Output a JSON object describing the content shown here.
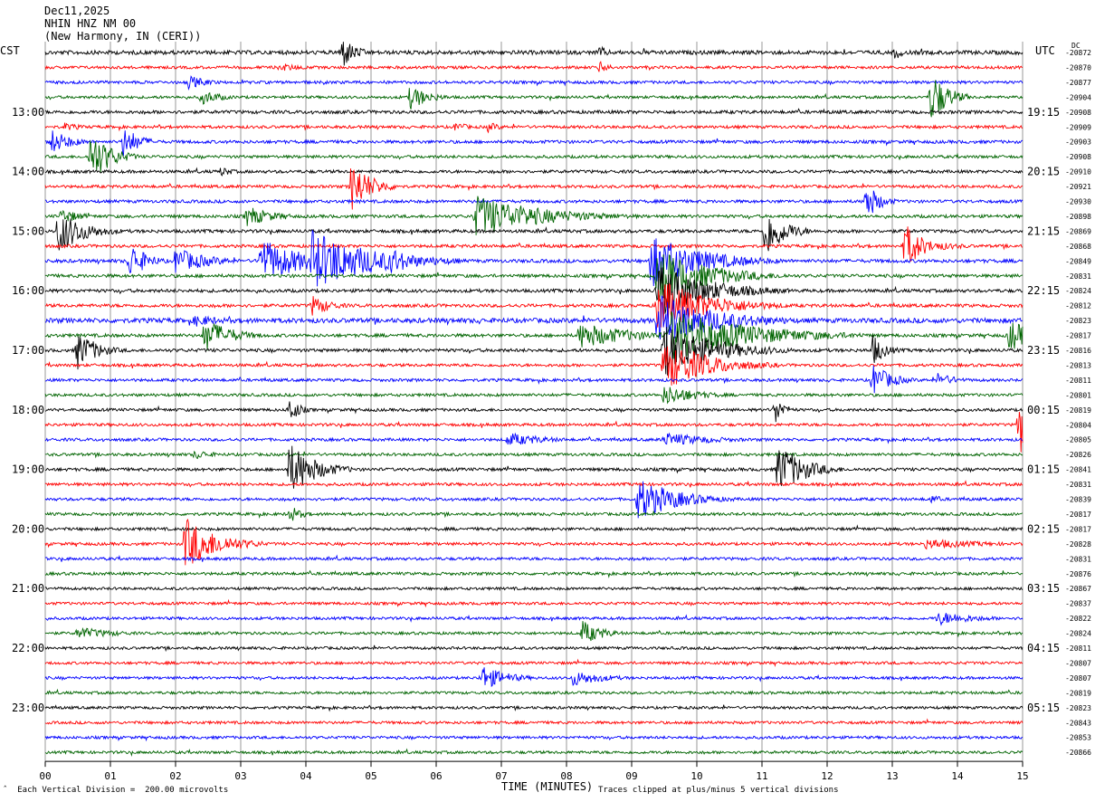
{
  "header": {
    "date": "Dec11,2025",
    "station": "NHIN HNZ NM 00",
    "location": "(New Harmony, IN (CERI))"
  },
  "left_tz": "CST",
  "right_tz": "UTC",
  "right_col_label": "DC",
  "footer": {
    "scale_note": "Each Vertical Division =  200.00 microvolts",
    "clip_note": "Traces clipped at plus/minus 5 vertical divisions"
  },
  "colors": {
    "cycle": [
      "#000000",
      "#ff0000",
      "#0000ff",
      "#006400"
    ],
    "grid": "#999999"
  },
  "chart_data": {
    "type": "line",
    "xlabel": "TIME (MINUTES)",
    "x_ticks": [
      "00",
      "01",
      "02",
      "03",
      "04",
      "05",
      "06",
      "07",
      "08",
      "09",
      "10",
      "11",
      "12",
      "13",
      "14",
      "15"
    ],
    "xlim": [
      0,
      15
    ],
    "left_time_labels": [
      {
        "trace": 4,
        "label": "13:00"
      },
      {
        "trace": 8,
        "label": "14:00"
      },
      {
        "trace": 12,
        "label": "15:00"
      },
      {
        "trace": 16,
        "label": "16:00"
      },
      {
        "trace": 20,
        "label": "17:00"
      },
      {
        "trace": 24,
        "label": "18:00"
      },
      {
        "trace": 28,
        "label": "19:00"
      },
      {
        "trace": 32,
        "label": "20:00"
      },
      {
        "trace": 36,
        "label": "21:00"
      },
      {
        "trace": 40,
        "label": "22:00"
      },
      {
        "trace": 44,
        "label": "23:00"
      }
    ],
    "right_time_labels": [
      {
        "trace": 4,
        "label": "19:15"
      },
      {
        "trace": 8,
        "label": "20:15"
      },
      {
        "trace": 12,
        "label": "21:15"
      },
      {
        "trace": 16,
        "label": "22:15"
      },
      {
        "trace": 20,
        "label": "23:15"
      },
      {
        "trace": 24,
        "label": "00:15"
      },
      {
        "trace": 28,
        "label": "01:15"
      },
      {
        "trace": 32,
        "label": "02:15"
      },
      {
        "trace": 36,
        "label": "03:15"
      },
      {
        "trace": 40,
        "label": "04:15"
      },
      {
        "trace": 44,
        "label": "05:15"
      }
    ],
    "dc_offsets": [
      "-20872",
      "-20870",
      "-20877",
      "-20904",
      "-20908",
      "-20909",
      "-20903",
      "-20908",
      "-20910",
      "-20921",
      "-20930",
      "-20898",
      "-20869",
      "-20868",
      "-20849",
      "-20831",
      "-20824",
      "-20812",
      "-20823",
      "-20817",
      "-20816",
      "-20813",
      "-20811",
      "-20801",
      "-20819",
      "-20804",
      "-20805",
      "-20826",
      "-20841",
      "-20831",
      "-20839",
      "-20817",
      "-20817",
      "-20828",
      "-20831",
      "-20876",
      "-20867",
      "-20837",
      "-20822",
      "-20824",
      "-20811",
      "-20807",
      "-20807",
      "-20819",
      "-20823",
      "-20843",
      "-20853",
      "-20866"
    ],
    "noise_levels": [
      2.2,
      1.6,
      1.6,
      1.5,
      1.8,
      1.6,
      1.7,
      1.6,
      1.7,
      1.6,
      1.7,
      1.7,
      1.8,
      1.7,
      1.9,
      1.8,
      1.8,
      1.8,
      2.6,
      1.8,
      1.8,
      1.6,
      1.6,
      1.6,
      1.6,
      1.6,
      1.6,
      1.6,
      1.7,
      1.6,
      1.6,
      1.6,
      1.6,
      1.6,
      1.6,
      1.6,
      1.5,
      1.5,
      1.5,
      1.5,
      1.5,
      1.5,
      1.5,
      1.5,
      1.5,
      1.5,
      1.5,
      1.5
    ],
    "events": [
      {
        "trace": 0,
        "minute": 4.55,
        "amplitude": 20,
        "duration": 0.2
      },
      {
        "trace": 0,
        "minute": 8.5,
        "amplitude": 8,
        "duration": 0.15
      },
      {
        "trace": 0,
        "minute": 13.05,
        "amplitude": 10,
        "duration": 0.1
      },
      {
        "trace": 1,
        "minute": 3.6,
        "amplitude": 5,
        "duration": 0.4
      },
      {
        "trace": 1,
        "minute": 8.5,
        "amplitude": 7,
        "duration": 0.2
      },
      {
        "trace": 2,
        "minute": 2.2,
        "amplitude": 8,
        "duration": 0.3
      },
      {
        "trace": 3,
        "minute": 5.6,
        "amplitude": 14,
        "duration": 0.3
      },
      {
        "trace": 3,
        "minute": 2.4,
        "amplitude": 9,
        "duration": 0.3
      },
      {
        "trace": 3,
        "minute": 13.6,
        "amplitude": 30,
        "duration": 0.25
      },
      {
        "trace": 5,
        "minute": 0.3,
        "amplitude": 5,
        "duration": 0.3
      },
      {
        "trace": 5,
        "minute": 6.3,
        "amplitude": 6,
        "duration": 0.2
      },
      {
        "trace": 5,
        "minute": 6.8,
        "amplitude": 6,
        "duration": 0.2
      },
      {
        "trace": 6,
        "minute": 0.1,
        "amplitude": 14,
        "duration": 0.3
      },
      {
        "trace": 6,
        "minute": 1.2,
        "amplitude": 18,
        "duration": 0.25
      },
      {
        "trace": 7,
        "minute": 0.7,
        "amplitude": 30,
        "duration": 0.3
      },
      {
        "trace": 8,
        "minute": 2.7,
        "amplitude": 6,
        "duration": 0.2
      },
      {
        "trace": 9,
        "minute": 4.7,
        "amplitude": 30,
        "duration": 0.3
      },
      {
        "trace": 10,
        "minute": 12.6,
        "amplitude": 22,
        "duration": 0.2
      },
      {
        "trace": 11,
        "minute": 0.25,
        "amplitude": 9,
        "duration": 0.3
      },
      {
        "trace": 11,
        "minute": 6.6,
        "amplitude": 24,
        "duration": 1.0
      },
      {
        "trace": 11,
        "minute": 3.1,
        "amplitude": 12,
        "duration": 0.4
      },
      {
        "trace": 12,
        "minute": 0.2,
        "amplitude": 25,
        "duration": 0.4
      },
      {
        "trace": 12,
        "minute": 11.05,
        "amplitude": 30,
        "duration": 0.3
      },
      {
        "trace": 13,
        "minute": 13.2,
        "amplitude": 28,
        "duration": 0.25
      },
      {
        "trace": 13,
        "minute": 13.6,
        "amplitude": 6,
        "duration": 0.5
      },
      {
        "trace": 14,
        "minute": 1.3,
        "amplitude": 22,
        "duration": 0.25
      },
      {
        "trace": 14,
        "minute": 2.0,
        "amplitude": 15,
        "duration": 0.5
      },
      {
        "trace": 14,
        "minute": 3.3,
        "amplitude": 25,
        "duration": 0.7
      },
      {
        "trace": 14,
        "minute": 4.1,
        "amplitude": 35,
        "duration": 0.9
      },
      {
        "trace": 14,
        "minute": 5.3,
        "amplitude": 16,
        "duration": 0.4
      },
      {
        "trace": 14,
        "minute": 9.3,
        "amplitude": 30,
        "duration": 0.8
      },
      {
        "trace": 15,
        "minute": 9.4,
        "amplitude": 30,
        "duration": 0.8
      },
      {
        "trace": 16,
        "minute": 9.4,
        "amplitude": 30,
        "duration": 0.8
      },
      {
        "trace": 17,
        "minute": 4.1,
        "amplitude": 12,
        "duration": 0.3
      },
      {
        "trace": 17,
        "minute": 9.4,
        "amplitude": 30,
        "duration": 0.8
      },
      {
        "trace": 18,
        "minute": 2.3,
        "amplitude": 7,
        "duration": 0.5
      },
      {
        "trace": 18,
        "minute": 9.4,
        "amplitude": 30,
        "duration": 0.9
      },
      {
        "trace": 19,
        "minute": 2.45,
        "amplitude": 20,
        "duration": 0.4
      },
      {
        "trace": 19,
        "minute": 8.2,
        "amplitude": 15,
        "duration": 0.8
      },
      {
        "trace": 19,
        "minute": 9.6,
        "amplitude": 30,
        "duration": 1.2
      },
      {
        "trace": 19,
        "minute": 14.8,
        "amplitude": 18,
        "duration": 0.4
      },
      {
        "trace": 20,
        "minute": 0.5,
        "amplitude": 22,
        "duration": 0.3
      },
      {
        "trace": 20,
        "minute": 9.5,
        "amplitude": 30,
        "duration": 0.8
      },
      {
        "trace": 20,
        "minute": 12.7,
        "amplitude": 18,
        "duration": 0.2
      },
      {
        "trace": 21,
        "minute": 9.5,
        "amplitude": 28,
        "duration": 0.7
      },
      {
        "trace": 22,
        "minute": 12.7,
        "amplitude": 18,
        "duration": 0.3
      },
      {
        "trace": 22,
        "minute": 13.7,
        "amplitude": 8,
        "duration": 0.3
      },
      {
        "trace": 23,
        "minute": 9.5,
        "amplitude": 12,
        "duration": 0.5
      },
      {
        "trace": 24,
        "minute": 3.75,
        "amplitude": 16,
        "duration": 0.15
      },
      {
        "trace": 24,
        "minute": 11.2,
        "amplitude": 16,
        "duration": 0.15
      },
      {
        "trace": 25,
        "minute": 14.95,
        "amplitude": 35,
        "duration": 0.3
      },
      {
        "trace": 26,
        "minute": 7.1,
        "amplitude": 8,
        "duration": 0.6
      },
      {
        "trace": 26,
        "minute": 9.5,
        "amplitude": 8,
        "duration": 0.8
      },
      {
        "trace": 27,
        "minute": 2.3,
        "amplitude": 6,
        "duration": 0.3
      },
      {
        "trace": 28,
        "minute": 3.75,
        "amplitude": 30,
        "duration": 0.4
      },
      {
        "trace": 28,
        "minute": 11.25,
        "amplitude": 30,
        "duration": 0.4
      },
      {
        "trace": 30,
        "minute": 9.1,
        "amplitude": 24,
        "duration": 0.6
      },
      {
        "trace": 30,
        "minute": 13.6,
        "amplitude": 5,
        "duration": 0.2
      },
      {
        "trace": 31,
        "minute": 3.75,
        "amplitude": 10,
        "duration": 0.2
      },
      {
        "trace": 33,
        "minute": 2.15,
        "amplitude": 30,
        "duration": 0.5
      },
      {
        "trace": 33,
        "minute": 13.5,
        "amplitude": 6,
        "duration": 1.0
      },
      {
        "trace": 38,
        "minute": 13.7,
        "amplitude": 8,
        "duration": 0.6
      },
      {
        "trace": 39,
        "minute": 0.5,
        "amplitude": 7,
        "duration": 0.6
      },
      {
        "trace": 39,
        "minute": 8.25,
        "amplitude": 14,
        "duration": 0.3
      },
      {
        "trace": 42,
        "minute": 6.7,
        "amplitude": 14,
        "duration": 0.4
      },
      {
        "trace": 42,
        "minute": 8.1,
        "amplitude": 9,
        "duration": 0.5
      }
    ]
  }
}
